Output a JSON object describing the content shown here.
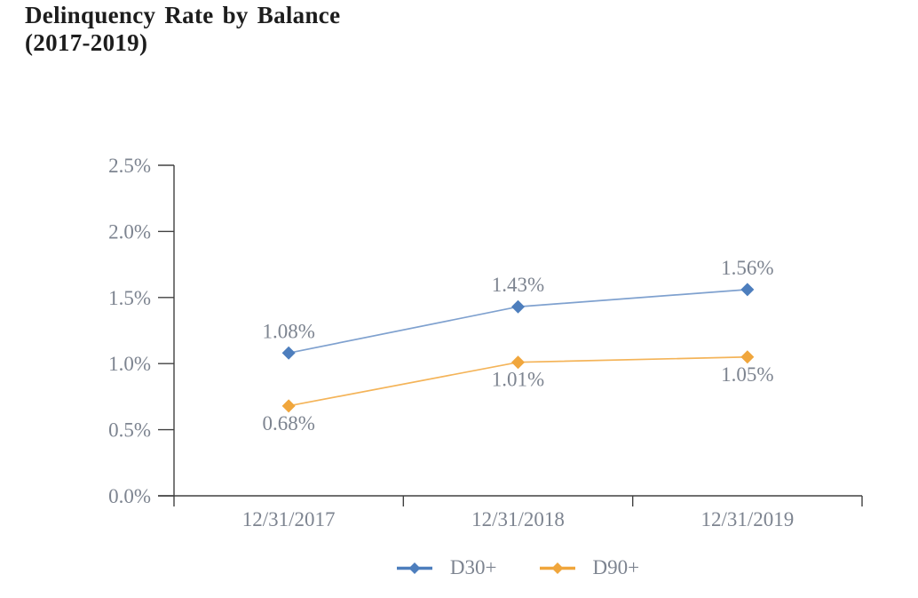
{
  "title": {
    "line1": "Delinquency Rate by Balance",
    "line2": "(2017-2019)"
  },
  "chart_data": {
    "type": "line",
    "title": "Delinquency Rate by Balance (2017-2019)",
    "categories": [
      "12/31/2017",
      "12/31/2018",
      "12/31/2019"
    ],
    "series": [
      {
        "name": "D30+",
        "values": [
          1.08,
          1.43,
          1.56
        ],
        "point_labels": [
          "1.08%",
          "1.43%",
          "1.56%"
        ],
        "color": "#4d7ebd",
        "line_color": "#7fa1cf",
        "marker": "diamond",
        "label_position": "above"
      },
      {
        "name": "D90+",
        "values": [
          0.68,
          1.01,
          1.05
        ],
        "point_labels": [
          "0.68%",
          "1.01%",
          "1.05%"
        ],
        "color": "#f0a63c",
        "line_color": "#f4b459",
        "marker": "diamond",
        "label_position": "below"
      }
    ],
    "xlabel": "",
    "ylabel": "",
    "ylim": [
      0,
      2.5
    ],
    "ytick_labels": [
      "0.0%",
      "0.5%",
      "1.0%",
      "1.5%",
      "2.0%",
      "2.5%"
    ],
    "grid": false,
    "legend_position": "bottom",
    "colors": {
      "axis": "#404040",
      "tick_label": "#7d8490",
      "title": "#1d1d1d"
    }
  }
}
